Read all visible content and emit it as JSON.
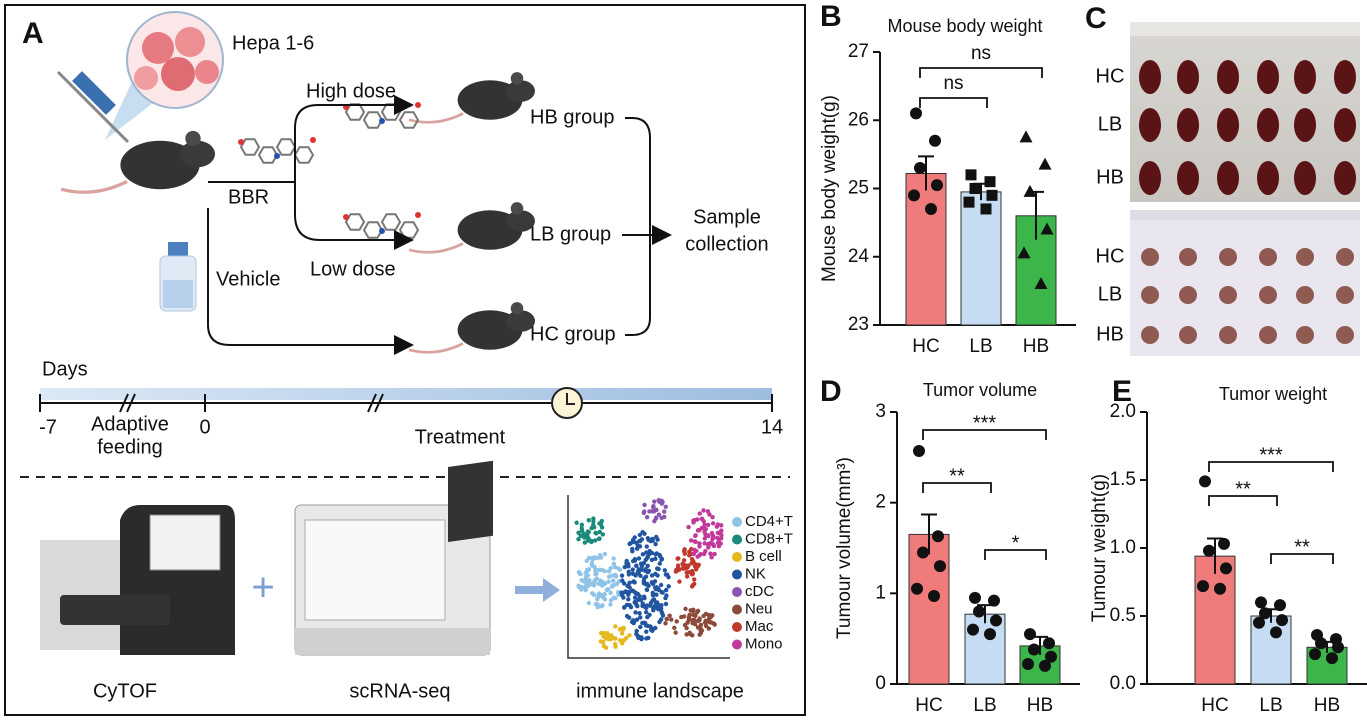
{
  "panel_a": {
    "label": "A",
    "cell_line": "Hepa 1-6",
    "drug": "BBR",
    "vehicle": "Vehicle",
    "high_dose": "High dose",
    "low_dose": "Low dose",
    "groups": [
      "HB group",
      "LB group",
      "HC group"
    ],
    "outcome": [
      "Sample",
      "collection"
    ],
    "timeline": {
      "label": "Days",
      "ticks": [
        -7,
        0,
        14
      ],
      "phases": [
        [
          "Adaptive",
          "feeding"
        ],
        [
          "Treatment"
        ]
      ]
    },
    "methods": [
      "CyTOF",
      "scRNA-seq",
      "immune landscape"
    ],
    "cell_types": [
      {
        "name": "CD4+T",
        "color": "#8fc3e8"
      },
      {
        "name": "CD8+T",
        "color": "#1a8a7a"
      },
      {
        "name": "B cell",
        "color": "#e6b820"
      },
      {
        "name": "NK",
        "color": "#2255a0"
      },
      {
        "name": "cDC",
        "color": "#8a55b0"
      },
      {
        "name": "Neu",
        "color": "#8b4a3a"
      },
      {
        "name": "Mac",
        "color": "#c0392b"
      },
      {
        "name": "Mono",
        "color": "#c0399b"
      }
    ]
  },
  "panel_c": {
    "label": "C",
    "rows_top": [
      "HC",
      "LB",
      "HB"
    ],
    "rows_bottom": [
      "HC",
      "LB",
      "HB"
    ]
  },
  "chart_data": [
    {
      "type": "bar",
      "label": "B",
      "title": "Mouse body weight",
      "y_label": "Mouse body weight(g)",
      "categories": [
        "HC",
        "LB",
        "HB"
      ],
      "values": [
        25.22,
        24.95,
        24.6
      ],
      "errors": [
        0.25,
        0.12,
        0.35
      ],
      "points": [
        [
          26.1,
          25.7,
          25.3,
          25.05,
          24.9,
          24.7
        ],
        [
          25.2,
          25.1,
          25.0,
          24.9,
          24.8,
          24.7
        ],
        [
          25.75,
          25.35,
          24.95,
          24.4,
          24.05,
          23.6
        ]
      ],
      "markers": [
        "circle",
        "square",
        "triangle"
      ],
      "colors": [
        "#f07b7b",
        "#c5dcf2",
        "#3cb54a"
      ],
      "ylim": [
        23,
        27
      ],
      "yticks": [
        23,
        24,
        25,
        26,
        27
      ],
      "brackets": [
        {
          "between": [
            0,
            1
          ],
          "label": "ns"
        },
        {
          "between": [
            0,
            2
          ],
          "label": "ns"
        }
      ]
    },
    {
      "type": "bar",
      "label": "D",
      "title": "Tumor volume",
      "y_label": "Tumour volume(mm³)",
      "categories": [
        "HC",
        "LB",
        "HB"
      ],
      "values": [
        1.65,
        0.77,
        0.42
      ],
      "errors": [
        0.22,
        0.1,
        0.1
      ],
      "points": [
        [
          2.57,
          1.63,
          1.45,
          1.3,
          1.05,
          0.97
        ],
        [
          0.95,
          0.92,
          0.8,
          0.7,
          0.6,
          0.55
        ],
        [
          0.55,
          0.45,
          0.38,
          0.3,
          0.22,
          0.2
        ]
      ],
      "markers": [
        "circle",
        "circle",
        "circle"
      ],
      "colors": [
        "#f07b7b",
        "#c5dcf2",
        "#3cb54a"
      ],
      "ylim": [
        0,
        3
      ],
      "yticks": [
        0,
        1,
        2,
        3
      ],
      "brackets": [
        {
          "between": [
            0,
            2
          ],
          "label": "***"
        },
        {
          "between": [
            0,
            1
          ],
          "label": "**"
        },
        {
          "between": [
            1,
            2
          ],
          "label": "*"
        }
      ]
    },
    {
      "type": "bar",
      "label": "E",
      "title": "Tumor weight",
      "y_label": "Tumour weight(g)",
      "categories": [
        "HC",
        "LB",
        "HB"
      ],
      "values": [
        0.94,
        0.5,
        0.27
      ],
      "errors": [
        0.13,
        0.05,
        0.04
      ],
      "points": [
        [
          1.49,
          1.03,
          0.98,
          0.85,
          0.72,
          0.7
        ],
        [
          0.6,
          0.58,
          0.52,
          0.47,
          0.45,
          0.38
        ],
        [
          0.36,
          0.33,
          0.3,
          0.27,
          0.22,
          0.19
        ]
      ],
      "markers": [
        "circle",
        "circle",
        "circle"
      ],
      "colors": [
        "#f07b7b",
        "#c5dcf2",
        "#3cb54a"
      ],
      "ylim": [
        0,
        2
      ],
      "yticks": [
        {
          "value": 0,
          "label": "0.0"
        },
        0.5,
        {
          "value": 1,
          "label": "1.0"
        },
        1.5,
        {
          "value": 2,
          "label": "2.0"
        }
      ],
      "brackets": [
        {
          "between": [
            0,
            2
          ],
          "label": "***"
        },
        {
          "between": [
            0,
            1
          ],
          "label": "**"
        },
        {
          "between": [
            1,
            2
          ],
          "label": "**"
        }
      ]
    }
  ]
}
